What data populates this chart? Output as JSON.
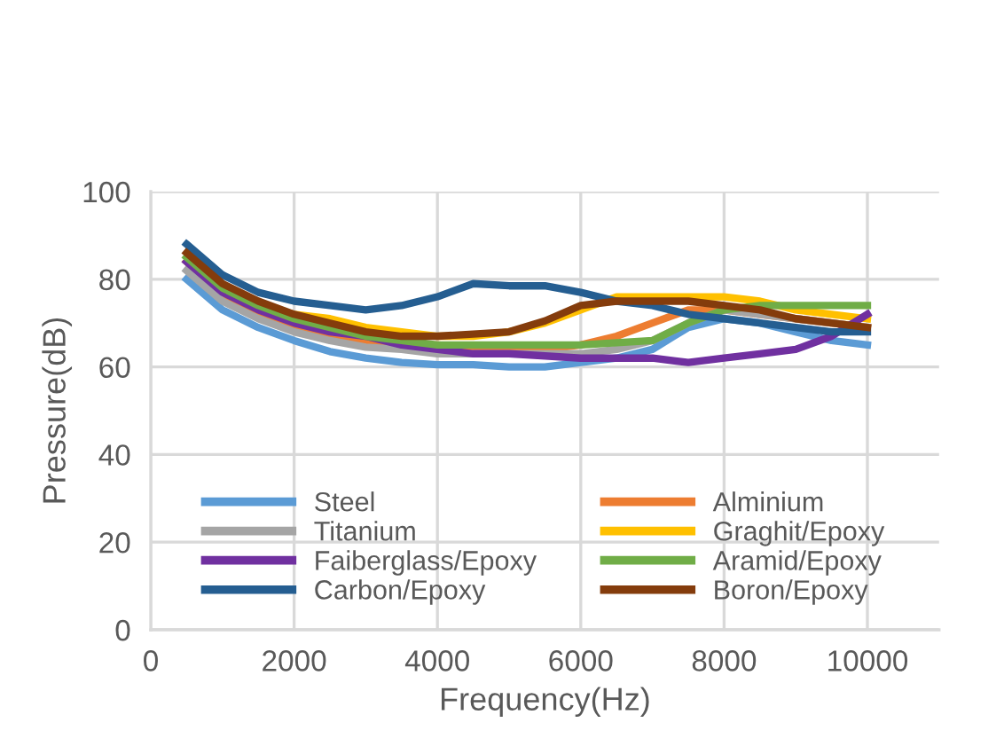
{
  "chart_data": {
    "type": "line",
    "xlabel": "Frequency(Hz)",
    "ylabel": "Pressure(dB)",
    "x": [
      500,
      1000,
      1500,
      2000,
      2500,
      3000,
      3500,
      4000,
      4500,
      5000,
      5500,
      6000,
      6500,
      7000,
      7500,
      8000,
      8500,
      9000,
      9500,
      10000
    ],
    "series": [
      {
        "name": "Steel",
        "color": "#5b9bd5",
        "values": [
          80,
          73,
          69,
          66,
          63.5,
          62,
          61,
          60.5,
          60.5,
          60,
          60,
          61,
          62,
          64,
          69,
          71,
          70,
          68,
          66,
          65
        ]
      },
      {
        "name": "Alminium",
        "color": "#ed7d31",
        "values": [
          84,
          76,
          72,
          69,
          67,
          65.5,
          65,
          65,
          64.5,
          64,
          64,
          65,
          67,
          70,
          73,
          73,
          72,
          71,
          70,
          69
        ]
      },
      {
        "name": "Titanium",
        "color": "#a5a5a5",
        "values": [
          82,
          75,
          71,
          68,
          66,
          64.5,
          64,
          63,
          63,
          63,
          63,
          63,
          64,
          66,
          70,
          73,
          72,
          71,
          70,
          69
        ]
      },
      {
        "name": "Graghit/Epoxy",
        "color": "#ffc000",
        "values": [
          null,
          null,
          74,
          72,
          71,
          69,
          68,
          67,
          67,
          68,
          70,
          73,
          76,
          76,
          76,
          76,
          75,
          73,
          72,
          71
        ]
      },
      {
        "name": "Faiberglass/Epoxy",
        "color": "#7030a0",
        "values": [
          84,
          77,
          73,
          70,
          68,
          67,
          65,
          64,
          63,
          63,
          62.5,
          62,
          62,
          62,
          61,
          62,
          63,
          64,
          67,
          72
        ]
      },
      {
        "name": "Aramid/Epoxy",
        "color": "#70ad47",
        "values": [
          85,
          78,
          74,
          71,
          69,
          67,
          66,
          65,
          65,
          65,
          65,
          65,
          65.5,
          66,
          70,
          73,
          74,
          74,
          74,
          74
        ]
      },
      {
        "name": "Carbon/Epoxy",
        "color": "#255e91",
        "values": [
          88,
          81,
          77,
          75,
          74,
          73,
          74,
          76,
          79,
          78.5,
          78.5,
          77,
          75,
          74,
          72,
          71,
          70,
          69,
          68,
          68
        ]
      },
      {
        "name": "Boron/Epoxy",
        "color": "#843c0c",
        "values": [
          86,
          79,
          75,
          72,
          70,
          68,
          67,
          67,
          67.5,
          68,
          70.5,
          74,
          75,
          75,
          75,
          74,
          73,
          71,
          70,
          69
        ]
      }
    ],
    "xlim": [
      0,
      11000
    ],
    "xticks": [
      0,
      2000,
      4000,
      6000,
      8000,
      10000
    ],
    "ylim": [
      0,
      100
    ],
    "yticks": [
      0,
      20,
      40,
      60,
      80,
      100
    ],
    "grid": true,
    "legend": "bottom",
    "line_style": "solid",
    "marker": "none"
  }
}
